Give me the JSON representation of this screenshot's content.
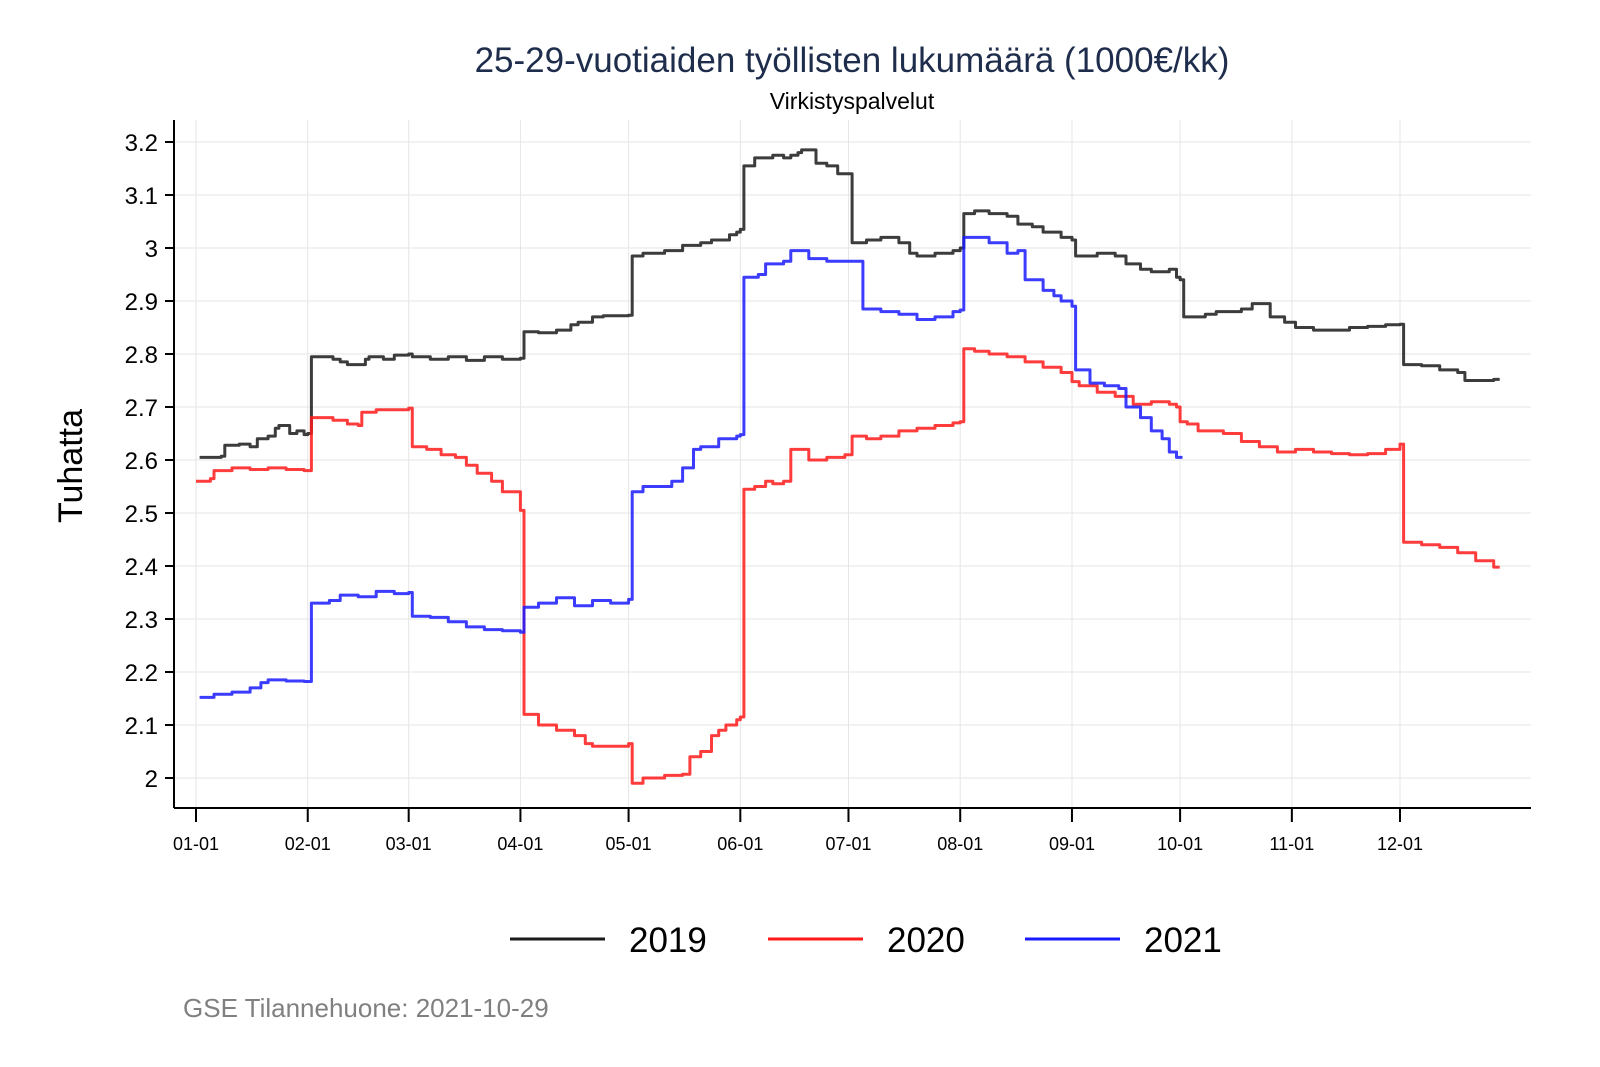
{
  "chart_data": {
    "type": "line",
    "title": "25-29-vuotiaiden työllisten lukumäärä (1000€/kk)",
    "subtitle": "Virkistyspalvelut",
    "xlabel": "",
    "ylabel": "Tuhatta",
    "ylim": [
      1.94,
      3.25
    ],
    "xlim": [
      -7,
      365
    ],
    "grid": true,
    "legend_position": "bottom",
    "caption": "GSE Tilannehuone: 2021-10-29",
    "yticks": [
      {
        "value": 2.0,
        "label": "2"
      },
      {
        "value": 2.1,
        "label": "2.1"
      },
      {
        "value": 2.2,
        "label": "2.2"
      },
      {
        "value": 2.3,
        "label": "2.3"
      },
      {
        "value": 2.4,
        "label": "2.4"
      },
      {
        "value": 2.5,
        "label": "2.5"
      },
      {
        "value": 2.6,
        "label": "2.6"
      },
      {
        "value": 2.7,
        "label": "2.7"
      },
      {
        "value": 2.8,
        "label": "2.8"
      },
      {
        "value": 2.9,
        "label": "2.9"
      },
      {
        "value": 3.0,
        "label": "3"
      },
      {
        "value": 3.1,
        "label": "3.1"
      },
      {
        "value": 3.2,
        "label": "3.2"
      }
    ],
    "xticks": [
      {
        "value": 0,
        "label": "01-01"
      },
      {
        "value": 31,
        "label": "02-01"
      },
      {
        "value": 59,
        "label": "03-01"
      },
      {
        "value": 90,
        "label": "04-01"
      },
      {
        "value": 120,
        "label": "05-01"
      },
      {
        "value": 151,
        "label": "06-01"
      },
      {
        "value": 181,
        "label": "07-01"
      },
      {
        "value": 212,
        "label": "08-01"
      },
      {
        "value": 243,
        "label": "09-01"
      },
      {
        "value": 273,
        "label": "10-01"
      },
      {
        "value": 304,
        "label": "11-01"
      },
      {
        "value": 334,
        "label": "12-01"
      }
    ],
    "series": [
      {
        "name": "2019",
        "color": "#1a1a1a",
        "x": [
          1,
          7,
          8,
          12,
          15,
          17,
          20,
          22,
          23,
          26,
          28,
          30,
          31,
          32,
          38,
          40,
          42,
          47,
          48,
          52,
          55,
          59,
          60,
          65,
          70,
          75,
          80,
          85,
          90,
          91,
          95,
          100,
          104,
          106,
          110,
          113,
          120,
          121,
          124,
          130,
          135,
          140,
          143,
          148,
          150,
          151,
          152,
          155,
          160,
          163,
          165,
          167,
          168,
          172,
          175,
          178,
          180,
          181,
          182,
          186,
          190,
          195,
          198,
          200,
          205,
          210,
          212,
          213,
          216,
          220,
          225,
          228,
          232,
          235,
          240,
          243,
          244,
          250,
          255,
          258,
          262,
          265,
          270,
          272,
          273,
          274,
          280,
          283,
          290,
          293,
          298,
          302,
          305,
          310,
          315,
          320,
          325,
          330,
          334,
          335,
          340,
          345,
          350,
          352,
          357,
          360
        ],
        "y": [
          2.605,
          2.607,
          2.628,
          2.63,
          2.625,
          2.64,
          2.645,
          2.66,
          2.665,
          2.65,
          2.655,
          2.648,
          2.65,
          2.795,
          2.79,
          2.785,
          2.78,
          2.79,
          2.795,
          2.79,
          2.798,
          2.8,
          2.795,
          2.79,
          2.795,
          2.788,
          2.795,
          2.79,
          2.792,
          2.842,
          2.84,
          2.845,
          2.855,
          2.86,
          2.87,
          2.872,
          2.873,
          2.985,
          2.99,
          2.995,
          3.005,
          3.01,
          3.015,
          3.025,
          3.03,
          3.035,
          3.155,
          3.17,
          3.175,
          3.17,
          3.175,
          3.18,
          3.185,
          3.16,
          3.155,
          3.14,
          3.14,
          3.14,
          3.01,
          3.015,
          3.02,
          3.01,
          2.99,
          2.985,
          2.99,
          2.995,
          3.0,
          3.065,
          3.07,
          3.065,
          3.06,
          3.045,
          3.04,
          3.03,
          3.02,
          3.015,
          2.985,
          2.99,
          2.985,
          2.97,
          2.96,
          2.955,
          2.96,
          2.945,
          2.94,
          2.87,
          2.875,
          2.88,
          2.885,
          2.895,
          2.87,
          2.86,
          2.85,
          2.845,
          2.845,
          2.85,
          2.852,
          2.855,
          2.856,
          2.78,
          2.778,
          2.77,
          2.765,
          2.75,
          2.75,
          2.752
        ]
      },
      {
        "name": "2020",
        "color": "#ff1a1a",
        "x": [
          0,
          4,
          5,
          10,
          15,
          20,
          25,
          30,
          31,
          32,
          38,
          42,
          45,
          46,
          50,
          55,
          59,
          60,
          64,
          68,
          72,
          75,
          78,
          82,
          85,
          90,
          91,
          95,
          100,
          105,
          108,
          110,
          115,
          120,
          121,
          124,
          130,
          135,
          137,
          140,
          143,
          145,
          147,
          150,
          151,
          152,
          155,
          158,
          160,
          163,
          165,
          170,
          175,
          180,
          182,
          186,
          190,
          195,
          200,
          205,
          210,
          212,
          213,
          216,
          220,
          225,
          230,
          235,
          240,
          243,
          245,
          250,
          255,
          260,
          265,
          270,
          272,
          273,
          275,
          278,
          285,
          290,
          295,
          300,
          305,
          310,
          315,
          320,
          325,
          330,
          334,
          335,
          340,
          345,
          350,
          355,
          360
        ],
        "y": [
          2.56,
          2.565,
          2.58,
          2.585,
          2.582,
          2.585,
          2.582,
          2.58,
          2.58,
          2.68,
          2.675,
          2.668,
          2.665,
          2.69,
          2.695,
          2.695,
          2.698,
          2.625,
          2.62,
          2.61,
          2.605,
          2.59,
          2.575,
          2.56,
          2.54,
          2.505,
          2.12,
          2.1,
          2.09,
          2.08,
          2.065,
          2.06,
          2.06,
          2.065,
          1.99,
          2.0,
          2.005,
          2.007,
          2.04,
          2.05,
          2.08,
          2.09,
          2.1,
          2.11,
          2.115,
          2.545,
          2.55,
          2.56,
          2.555,
          2.56,
          2.62,
          2.6,
          2.605,
          2.61,
          2.645,
          2.64,
          2.645,
          2.655,
          2.66,
          2.665,
          2.67,
          2.672,
          2.81,
          2.805,
          2.8,
          2.795,
          2.785,
          2.775,
          2.765,
          2.748,
          2.74,
          2.728,
          2.72,
          2.705,
          2.71,
          2.705,
          2.7,
          2.672,
          2.668,
          2.655,
          2.65,
          2.635,
          2.625,
          2.615,
          2.62,
          2.615,
          2.612,
          2.61,
          2.612,
          2.62,
          2.63,
          2.445,
          2.44,
          2.435,
          2.425,
          2.41,
          2.398
        ]
      },
      {
        "name": "2021",
        "color": "#1a1aff",
        "x": [
          1,
          5,
          10,
          15,
          18,
          20,
          25,
          30,
          31,
          32,
          37,
          40,
          45,
          50,
          55,
          59,
          60,
          65,
          70,
          75,
          80,
          85,
          90,
          91,
          95,
          100,
          105,
          110,
          115,
          120,
          121,
          124,
          128,
          132,
          135,
          138,
          140,
          145,
          150,
          151,
          152,
          156,
          158,
          163,
          165,
          170,
          175,
          180,
          181,
          185,
          190,
          195,
          200,
          205,
          210,
          212,
          213,
          216,
          220,
          225,
          228,
          230,
          235,
          238,
          240,
          243,
          244,
          248,
          252,
          256,
          258,
          262,
          265,
          268,
          270,
          272
        ],
        "y": [
          2.152,
          2.158,
          2.162,
          2.17,
          2.18,
          2.185,
          2.183,
          2.182,
          2.182,
          2.33,
          2.335,
          2.345,
          2.342,
          2.352,
          2.348,
          2.35,
          2.305,
          2.303,
          2.295,
          2.285,
          2.28,
          2.278,
          2.275,
          2.322,
          2.33,
          2.34,
          2.325,
          2.335,
          2.33,
          2.337,
          2.54,
          2.55,
          2.55,
          2.56,
          2.585,
          2.62,
          2.625,
          2.64,
          2.645,
          2.648,
          2.945,
          2.95,
          2.97,
          2.975,
          2.995,
          2.98,
          2.975,
          2.975,
          2.975,
          2.885,
          2.88,
          2.875,
          2.865,
          2.87,
          2.88,
          2.883,
          3.02,
          3.02,
          3.01,
          2.99,
          2.995,
          2.94,
          2.92,
          2.91,
          2.9,
          2.89,
          2.77,
          2.745,
          2.74,
          2.735,
          2.7,
          2.68,
          2.655,
          2.64,
          2.615,
          2.605
        ]
      }
    ]
  }
}
